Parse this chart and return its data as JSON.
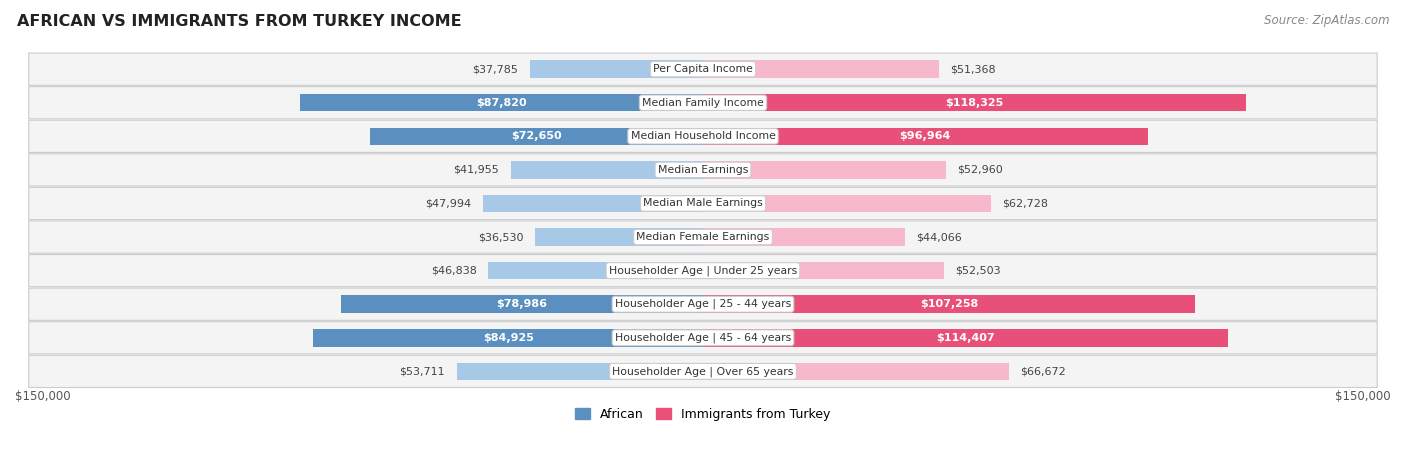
{
  "title": "AFRICAN VS IMMIGRANTS FROM TURKEY INCOME",
  "source": "Source: ZipAtlas.com",
  "categories": [
    "Per Capita Income",
    "Median Family Income",
    "Median Household Income",
    "Median Earnings",
    "Median Male Earnings",
    "Median Female Earnings",
    "Householder Age | Under 25 years",
    "Householder Age | 25 - 44 years",
    "Householder Age | 45 - 64 years",
    "Householder Age | Over 65 years"
  ],
  "african_values": [
    37785,
    87820,
    72650,
    41955,
    47994,
    36530,
    46838,
    78986,
    84925,
    53711
  ],
  "turkey_values": [
    51368,
    118325,
    96964,
    52960,
    62728,
    44066,
    52503,
    107258,
    114407,
    66672
  ],
  "african_labels": [
    "$37,785",
    "$87,820",
    "$72,650",
    "$41,955",
    "$47,994",
    "$36,530",
    "$46,838",
    "$78,986",
    "$84,925",
    "$53,711"
  ],
  "turkey_labels": [
    "$51,368",
    "$118,325",
    "$96,964",
    "$52,960",
    "$62,728",
    "$44,066",
    "$52,503",
    "$107,258",
    "$114,407",
    "$66,672"
  ],
  "african_color_light": "#a8c8e8",
  "african_color_dark": "#5a8fc0",
  "turkey_color_light": "#f8b8cc",
  "turkey_color_dark": "#e8507a",
  "max_value": 150000,
  "bar_height": 0.52,
  "label_color_dark": "#444444",
  "label_color_white": "#ffffff",
  "legend_african": "African",
  "legend_turkey": "Immigrants from Turkey",
  "x_label_left": "$150,000",
  "x_label_right": "$150,000",
  "african_inside_threshold": 65000,
  "turkey_inside_threshold": 80000
}
